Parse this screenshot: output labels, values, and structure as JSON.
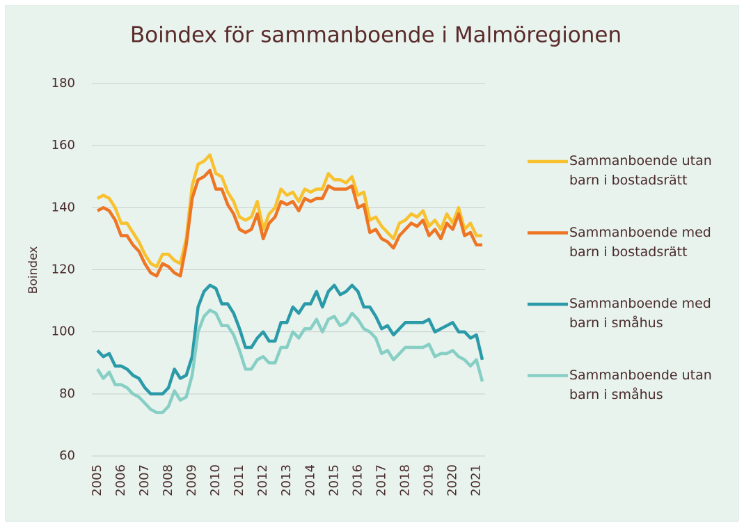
{
  "chart_data": {
    "type": "line",
    "title": "Boindex för sammanboende i Malmöregionen",
    "ylabel": "Boindex",
    "x": [
      2005,
      2005.25,
      2005.5,
      2005.75,
      2006,
      2006.25,
      2006.5,
      2006.75,
      2007,
      2007.25,
      2007.5,
      2007.75,
      2008,
      2008.25,
      2008.5,
      2008.75,
      2009,
      2009.25,
      2009.5,
      2009.75,
      2010,
      2010.25,
      2010.5,
      2010.75,
      2011,
      2011.25,
      2011.5,
      2011.75,
      2012,
      2012.25,
      2012.5,
      2012.75,
      2013,
      2013.25,
      2013.5,
      2013.75,
      2014,
      2014.25,
      2014.5,
      2014.75,
      2015,
      2015.25,
      2015.5,
      2015.75,
      2016,
      2016.25,
      2016.5,
      2016.75,
      2017,
      2017.25,
      2017.5,
      2017.75,
      2018,
      2018.25,
      2018.5,
      2018.75,
      2019,
      2019.25,
      2019.5,
      2019.75,
      2020,
      2020.25,
      2020.5,
      2020.75,
      2021,
      2021.25
    ],
    "xlim": [
      2005,
      2021.25
    ],
    "xticks": [
      2005,
      2006,
      2007,
      2008,
      2009,
      2010,
      2011,
      2012,
      2013,
      2014,
      2015,
      2016,
      2017,
      2018,
      2019,
      2020,
      2021
    ],
    "ylim": [
      60,
      180
    ],
    "yticks": [
      60,
      80,
      100,
      120,
      140,
      160,
      180
    ],
    "grid": true,
    "legend": "right",
    "series": [
      {
        "name": "Sammanboende utan barn i bostadsrätt",
        "color": "#f8c12f",
        "values": [
          143,
          144,
          143,
          140,
          135,
          135,
          132,
          129,
          125,
          122,
          121,
          125,
          125,
          123,
          122,
          130,
          147,
          154,
          155,
          157,
          151,
          150,
          145,
          142,
          137,
          136,
          137,
          142,
          133,
          138,
          140,
          146,
          144,
          145,
          142,
          146,
          145,
          146,
          146,
          151,
          149,
          149,
          148,
          150,
          144,
          145,
          136,
          137,
          134,
          132,
          130,
          135,
          136,
          138,
          137,
          139,
          134,
          136,
          133,
          138,
          135,
          140,
          133,
          135,
          131,
          131
        ]
      },
      {
        "name": "Sammanboende med barn i bostadsrätt",
        "color": "#ed7524",
        "values": [
          139,
          140,
          139,
          136,
          131,
          131,
          128,
          126,
          122,
          119,
          118,
          122,
          121,
          119,
          118,
          128,
          143,
          149,
          150,
          152,
          146,
          146,
          141,
          138,
          133,
          132,
          133,
          138,
          130,
          135,
          137,
          142,
          141,
          142,
          139,
          143,
          142,
          143,
          143,
          147,
          146,
          146,
          146,
          147,
          140,
          141,
          132,
          133,
          130,
          129,
          127,
          131,
          133,
          135,
          134,
          136,
          131,
          133,
          130,
          135,
          133,
          138,
          131,
          132,
          128,
          128
        ]
      },
      {
        "name": "Sammanboende med barn i småhus",
        "color": "#2b9aa8",
        "values": [
          94,
          92,
          93,
          89,
          89,
          88,
          86,
          85,
          82,
          80,
          80,
          80,
          82,
          88,
          85,
          86,
          92,
          108,
          113,
          115,
          114,
          109,
          109,
          106,
          101,
          95,
          95,
          98,
          100,
          97,
          97,
          103,
          103,
          108,
          106,
          109,
          109,
          113,
          108,
          113,
          115,
          112,
          113,
          115,
          113,
          108,
          108,
          105,
          101,
          102,
          99,
          101,
          103,
          103,
          103,
          103,
          104,
          100,
          101,
          102,
          103,
          100,
          100,
          98,
          99,
          91
        ]
      },
      {
        "name": "Sammanboende utan barn i småhus",
        "color": "#87cfc4",
        "values": [
          88,
          85,
          87,
          83,
          83,
          82,
          80,
          79,
          77,
          75,
          74,
          74,
          76,
          81,
          78,
          79,
          86,
          100,
          105,
          107,
          106,
          102,
          102,
          99,
          94,
          88,
          88,
          91,
          92,
          90,
          90,
          95,
          95,
          100,
          98,
          101,
          101,
          104,
          100,
          104,
          105,
          102,
          103,
          106,
          104,
          101,
          100,
          98,
          93,
          94,
          91,
          93,
          95,
          95,
          95,
          95,
          96,
          92,
          93,
          93,
          94,
          92,
          91,
          89,
          91,
          84
        ]
      }
    ]
  }
}
